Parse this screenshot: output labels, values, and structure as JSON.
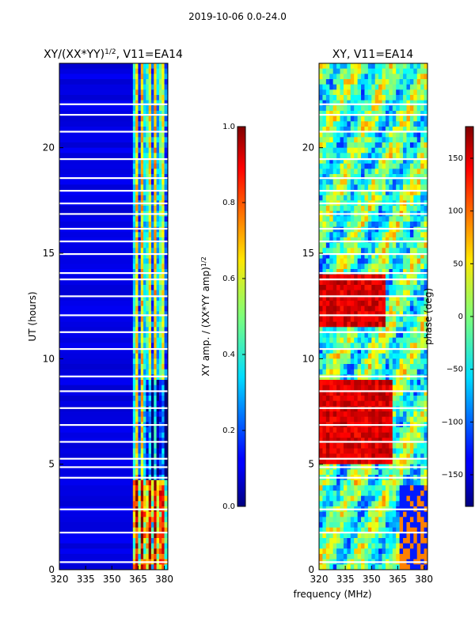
{
  "figure": {
    "suptitle": "2019-10-06 0.0-24.0",
    "common_xlabel": "frequency (MHz)"
  },
  "chart_data": [
    {
      "type": "heatmap",
      "title_main": "XY/(XX*YY)",
      "title_exp": "1/2",
      "title_suffix": ", V11=EA14",
      "ylabel": "UT (hours)",
      "xlim": [
        320,
        382
      ],
      "ylim": [
        0,
        24
      ],
      "xticks": [
        320,
        335,
        350,
        365,
        380
      ],
      "yticks": [
        0,
        5,
        10,
        15,
        20
      ],
      "colorbar": {
        "label_main": "XY amp. / (XX*YY amp)",
        "label_exp": "1/2",
        "range": [
          0.0,
          1.0
        ],
        "ticks": [
          "0.0",
          "0.2",
          "0.4",
          "0.6",
          "0.8",
          "1.0"
        ],
        "tick_values": [
          0.0,
          0.2,
          0.4,
          0.6,
          0.8,
          1.0
        ],
        "colormap": "jet"
      },
      "pattern": "low-amplitude background across 320-361 MHz; elevated amplitude columns at roughly 362-380 MHz, strongest 0-4 h"
    },
    {
      "type": "heatmap",
      "title": "XY, V11=EA14",
      "xlim": [
        320,
        382
      ],
      "ylim": [
        0,
        24
      ],
      "xticks": [
        320,
        335,
        350,
        365,
        380
      ],
      "yticks": [
        0,
        5,
        10,
        15,
        20
      ],
      "colorbar": {
        "label": "phase (deg)",
        "range": [
          -180,
          180
        ],
        "ticks": [
          "−150",
          "−100",
          "−50",
          "0",
          "50",
          "100",
          "150"
        ],
        "tick_values": [
          -150,
          -100,
          -50,
          0,
          50,
          100,
          150
        ],
        "colormap": "jet"
      },
      "pattern": "phase varies across band; red (~+150) blocks around 320-360 MHz at 5-9 h and 12-14 h; cyan/green elsewhere"
    }
  ]
}
